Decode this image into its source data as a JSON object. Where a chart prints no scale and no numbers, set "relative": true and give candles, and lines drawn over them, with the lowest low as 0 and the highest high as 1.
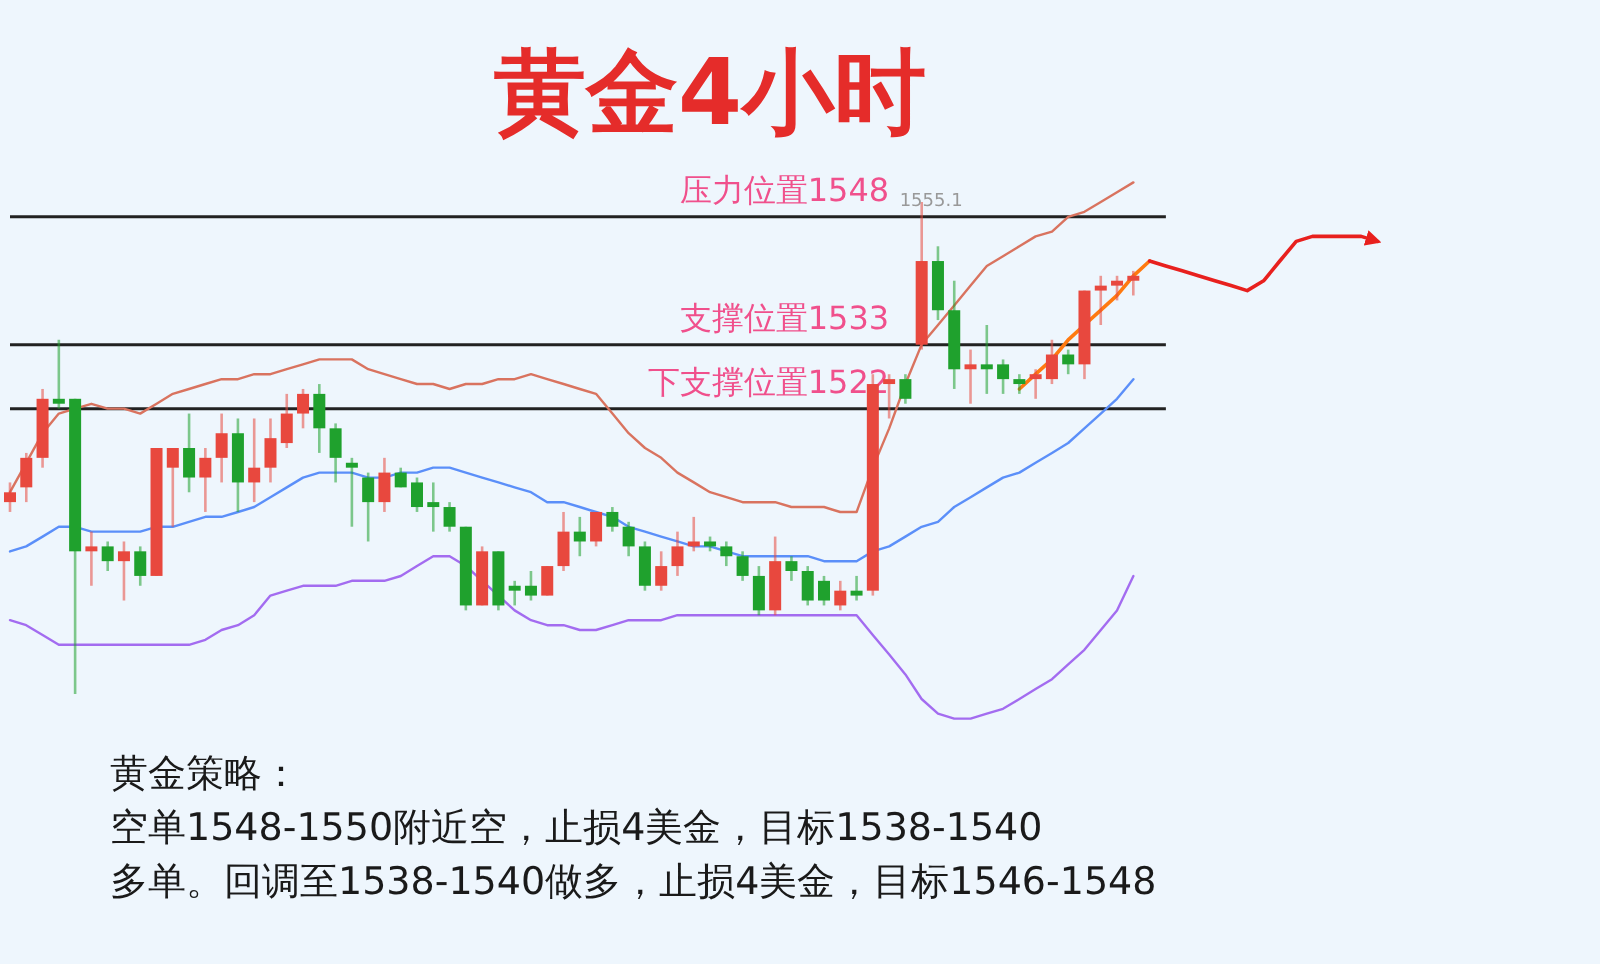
{
  "chart_data": {
    "type": "candlestick",
    "title": "黄金4小时",
    "relative": true,
    "categories": [
      null,
      null,
      null,
      null,
      null,
      null,
      null,
      null,
      null,
      null,
      null,
      null,
      null,
      null,
      null,
      null,
      null,
      null,
      null,
      null,
      null,
      null,
      null,
      null,
      null,
      null,
      null,
      null,
      null,
      null,
      null,
      null,
      null,
      null,
      null,
      null,
      null,
      null,
      null,
      null,
      null,
      null,
      null,
      null,
      null,
      null,
      null,
      null,
      null,
      null,
      null,
      null,
      null,
      null,
      null,
      null,
      null,
      null,
      null,
      null,
      null,
      null,
      null,
      null,
      null,
      null,
      null,
      null,
      null,
      null,
      null,
      null,
      null,
      null,
      null,
      null,
      null,
      null,
      null,
      null,
      null,
      null,
      null,
      null,
      null
    ],
    "ohlc": [
      [
        0.39,
        0.43,
        0.37,
        0.41
      ],
      [
        0.42,
        0.49,
        0.39,
        0.48
      ],
      [
        0.48,
        0.62,
        0.46,
        0.6
      ],
      [
        0.6,
        0.72,
        0.58,
        0.59
      ],
      [
        0.6,
        0.6,
        0,
        0.29
      ],
      [
        0.29,
        0.33,
        0.22,
        0.3
      ],
      [
        0.3,
        0.31,
        0.25,
        0.27
      ],
      [
        0.27,
        0.31,
        0.19,
        0.29
      ],
      [
        0.29,
        0.3,
        0.22,
        0.24
      ],
      [
        0.24,
        0.5,
        0.24,
        0.5
      ],
      [
        0.46,
        0.5,
        0.34,
        0.5
      ],
      [
        0.5,
        0.57,
        0.41,
        0.44
      ],
      [
        0.44,
        0.5,
        0.37,
        0.48
      ],
      [
        0.48,
        0.57,
        0.43,
        0.53
      ],
      [
        0.53,
        0.56,
        0.37,
        0.43
      ],
      [
        0.43,
        0.56,
        0.39,
        0.46
      ],
      [
        0.46,
        0.56,
        0.43,
        0.52
      ],
      [
        0.51,
        0.61,
        0.5,
        0.57
      ],
      [
        0.57,
        0.62,
        0.54,
        0.61
      ],
      [
        0.61,
        0.63,
        0.49,
        0.54
      ],
      [
        0.54,
        0.55,
        0.43,
        0.48
      ],
      [
        0.47,
        0.48,
        0.34,
        0.46
      ],
      [
        0.44,
        0.45,
        0.31,
        0.39
      ],
      [
        0.39,
        0.48,
        0.37,
        0.45
      ],
      [
        0.45,
        0.46,
        0.42,
        0.42
      ],
      [
        0.43,
        0.44,
        0.37,
        0.38
      ],
      [
        0.39,
        0.43,
        0.33,
        0.38
      ],
      [
        0.38,
        0.39,
        0.33,
        0.34
      ],
      [
        0.34,
        0.34,
        0.17,
        0.18
      ],
      [
        0.18,
        0.3,
        0.18,
        0.29
      ],
      [
        0.29,
        0.29,
        0.17,
        0.18
      ],
      [
        0.22,
        0.23,
        0.18,
        0.21
      ],
      [
        0.22,
        0.25,
        0.19,
        0.2
      ],
      [
        0.2,
        0.26,
        0.2,
        0.26
      ],
      [
        0.26,
        0.37,
        0.25,
        0.33
      ],
      [
        0.33,
        0.36,
        0.28,
        0.31
      ],
      [
        0.31,
        0.37,
        0.3,
        0.37
      ],
      [
        0.37,
        0.38,
        0.33,
        0.34
      ],
      [
        0.34,
        0.35,
        0.28,
        0.3
      ],
      [
        0.3,
        0.31,
        0.21,
        0.22
      ],
      [
        0.22,
        0.29,
        0.21,
        0.26
      ],
      [
        0.26,
        0.33,
        0.24,
        0.3
      ],
      [
        0.3,
        0.36,
        0.29,
        0.31
      ],
      [
        0.31,
        0.32,
        0.29,
        0.3
      ],
      [
        0.3,
        0.31,
        0.26,
        0.28
      ],
      [
        0.28,
        0.29,
        0.23,
        0.24
      ],
      [
        0.24,
        0.26,
        0.16,
        0.17
      ],
      [
        0.17,
        0.32,
        0.16,
        0.27
      ],
      [
        0.27,
        0.28,
        0.23,
        0.25
      ],
      [
        0.25,
        0.26,
        0.18,
        0.19
      ],
      [
        0.23,
        0.24,
        0.18,
        0.19
      ],
      [
        0.18,
        0.23,
        0.17,
        0.21
      ],
      [
        0.21,
        0.24,
        0.19,
        0.2
      ],
      [
        0.21,
        0.65,
        0.2,
        0.63
      ],
      [
        0.63,
        0.65,
        0.56,
        0.64
      ],
      [
        0.64,
        0.65,
        0.59,
        0.6
      ],
      [
        0.71,
        1,
        0.7,
        0.88
      ],
      [
        0.88,
        0.91,
        0.76,
        0.78
      ],
      [
        0.78,
        0.84,
        0.62,
        0.66
      ],
      [
        0.66,
        0.7,
        0.59,
        0.67
      ],
      [
        0.67,
        0.75,
        0.61,
        0.66
      ],
      [
        0.67,
        0.68,
        0.61,
        0.64
      ],
      [
        0.64,
        0.65,
        0.61,
        0.63
      ],
      [
        0.64,
        0.66,
        0.6,
        0.65
      ],
      [
        0.64,
        0.72,
        0.63,
        0.69
      ],
      [
        0.69,
        0.7,
        0.65,
        0.67
      ],
      [
        0.67,
        0.82,
        0.64,
        0.82
      ],
      [
        0.82,
        0.85,
        0.75,
        0.83
      ],
      [
        0.83,
        0.85,
        0.8,
        0.84
      ],
      [
        0.84,
        0.86,
        0.81,
        0.85
      ],
      null,
      null,
      null,
      null,
      null,
      null,
      null,
      null,
      null,
      null,
      null,
      null,
      null,
      null,
      null
    ],
    "series": [
      {
        "type": "line",
        "color": "#d9735f",
        "values": [
          0.41,
          0.47,
          0.53,
          0.57,
          0.58,
          0.59,
          0.58,
          0.58,
          0.57,
          0.59,
          0.61,
          0.62,
          0.63,
          0.64,
          0.64,
          0.65,
          0.65,
          0.66,
          0.67,
          0.68,
          0.68,
          0.68,
          0.66,
          0.65,
          0.64,
          0.63,
          0.63,
          0.62,
          0.63,
          0.63,
          0.64,
          0.64,
          0.65,
          0.64,
          0.63,
          0.62,
          0.61,
          0.57,
          0.53,
          0.5,
          0.48,
          0.45,
          0.43,
          0.41,
          0.4,
          0.39,
          0.39,
          0.39,
          0.38,
          0.38,
          0.38,
          0.37,
          0.37,
          0.46,
          0.54,
          0.63,
          0.71,
          0.75,
          0.79,
          0.83,
          0.87,
          0.89,
          0.91,
          0.93,
          0.94,
          0.97,
          0.98,
          1.0,
          1.02,
          1.04,
          null,
          null,
          null,
          null,
          null,
          null,
          null,
          null,
          null,
          null,
          null,
          null,
          null,
          null,
          null
        ]
      },
      {
        "type": "line",
        "color": "#5b8ff9",
        "values": [
          0.29,
          0.3,
          0.32,
          0.34,
          0.34,
          0.33,
          0.33,
          0.33,
          0.33,
          0.34,
          0.34,
          0.35,
          0.36,
          0.36,
          0.37,
          0.38,
          0.4,
          0.42,
          0.44,
          0.45,
          0.45,
          0.45,
          0.44,
          0.44,
          0.45,
          0.45,
          0.46,
          0.46,
          0.45,
          0.44,
          0.43,
          0.42,
          0.41,
          0.39,
          0.39,
          0.38,
          0.37,
          0.36,
          0.34,
          0.33,
          0.32,
          0.31,
          0.3,
          0.3,
          0.29,
          0.28,
          0.28,
          0.28,
          0.28,
          0.28,
          0.27,
          0.27,
          0.27,
          0.29,
          0.3,
          0.32,
          0.34,
          0.35,
          0.38,
          0.4,
          0.42,
          0.44,
          0.45,
          0.47,
          0.49,
          0.51,
          0.54,
          0.57,
          0.6,
          0.64,
          null,
          null,
          null,
          null,
          null,
          null,
          null,
          null,
          null,
          null,
          null,
          null,
          null,
          null,
          null
        ]
      },
      {
        "type": "line",
        "color": "#a36cf0",
        "values": [
          0.15,
          0.14,
          0.12,
          0.1,
          0.1,
          0.1,
          0.1,
          0.1,
          0.1,
          0.1,
          0.1,
          0.1,
          0.11,
          0.13,
          0.14,
          0.16,
          0.2,
          0.21,
          0.22,
          0.22,
          0.22,
          0.23,
          0.23,
          0.23,
          0.24,
          0.26,
          0.28,
          0.28,
          0.26,
          0.23,
          0.2,
          0.17,
          0.15,
          0.14,
          0.14,
          0.13,
          0.13,
          0.14,
          0.15,
          0.15,
          0.15,
          0.16,
          0.16,
          0.16,
          0.16,
          0.16,
          0.16,
          0.16,
          0.16,
          0.16,
          0.16,
          0.16,
          0.16,
          0.12,
          0.08,
          0.04,
          -0.01,
          -0.04,
          -0.05,
          -0.05,
          -0.04,
          -0.03,
          -0.01,
          0.01,
          0.03,
          0.06,
          0.09,
          0.13,
          0.17,
          0.24,
          null,
          null,
          null,
          null,
          null,
          null,
          null,
          null,
          null,
          null,
          null,
          null,
          null,
          null,
          null
        ]
      },
      {
        "type": "line",
        "color": "#ff7a10",
        "values": [
          null,
          null,
          null,
          null,
          null,
          null,
          null,
          null,
          null,
          null,
          null,
          null,
          null,
          null,
          null,
          null,
          null,
          null,
          null,
          null,
          null,
          null,
          null,
          null,
          null,
          null,
          null,
          null,
          null,
          null,
          null,
          null,
          null,
          null,
          null,
          null,
          null,
          null,
          null,
          null,
          null,
          null,
          null,
          null,
          null,
          null,
          null,
          null,
          null,
          null,
          null,
          null,
          null,
          null,
          null,
          null,
          null,
          null,
          null,
          null,
          null,
          null,
          0.62,
          0.65,
          0.68,
          0.72,
          0.75,
          0.78,
          0.81,
          0.85,
          0.88,
          null,
          null,
          null,
          null,
          null,
          null,
          null,
          null,
          null,
          null,
          null,
          null,
          null,
          null
        ]
      },
      {
        "type": "line",
        "color": "#e8201e",
        "values": [
          null,
          null,
          null,
          null,
          null,
          null,
          null,
          null,
          null,
          null,
          null,
          null,
          null,
          null,
          null,
          null,
          null,
          null,
          null,
          null,
          null,
          null,
          null,
          null,
          null,
          null,
          null,
          null,
          null,
          null,
          null,
          null,
          null,
          null,
          null,
          null,
          null,
          null,
          null,
          null,
          null,
          null,
          null,
          null,
          null,
          null,
          null,
          null,
          null,
          null,
          null,
          null,
          null,
          null,
          null,
          null,
          null,
          null,
          null,
          null,
          null,
          null,
          null,
          null,
          null,
          null,
          null,
          null,
          null,
          null,
          0.88,
          0.87,
          0.86,
          0.85,
          0.84,
          0.83,
          0.82,
          0.84,
          0.88,
          0.92,
          0.93,
          0.93,
          0.93,
          0.93,
          0.92
        ]
      }
    ],
    "ref_lines": [
      {
        "axis": "y",
        "value": 0.97,
        "label": "压力位置1548",
        "color": "#222222"
      },
      {
        "axis": "y",
        "value": 0.71,
        "label": "支撑位置1533",
        "color": "#222222"
      },
      {
        "axis": "y",
        "value": 0.58,
        "label": "下支撑位置1522",
        "color": "#222222"
      }
    ],
    "annotations": [
      {
        "text": "1555.1",
        "y": 1
      },
      "黄金策略：",
      "空单1548-1550附近空，止损4美金，目标1538-1540",
      "多单。回调至1538-1540做多，止损4美金，目标1546-1548"
    ]
  }
}
